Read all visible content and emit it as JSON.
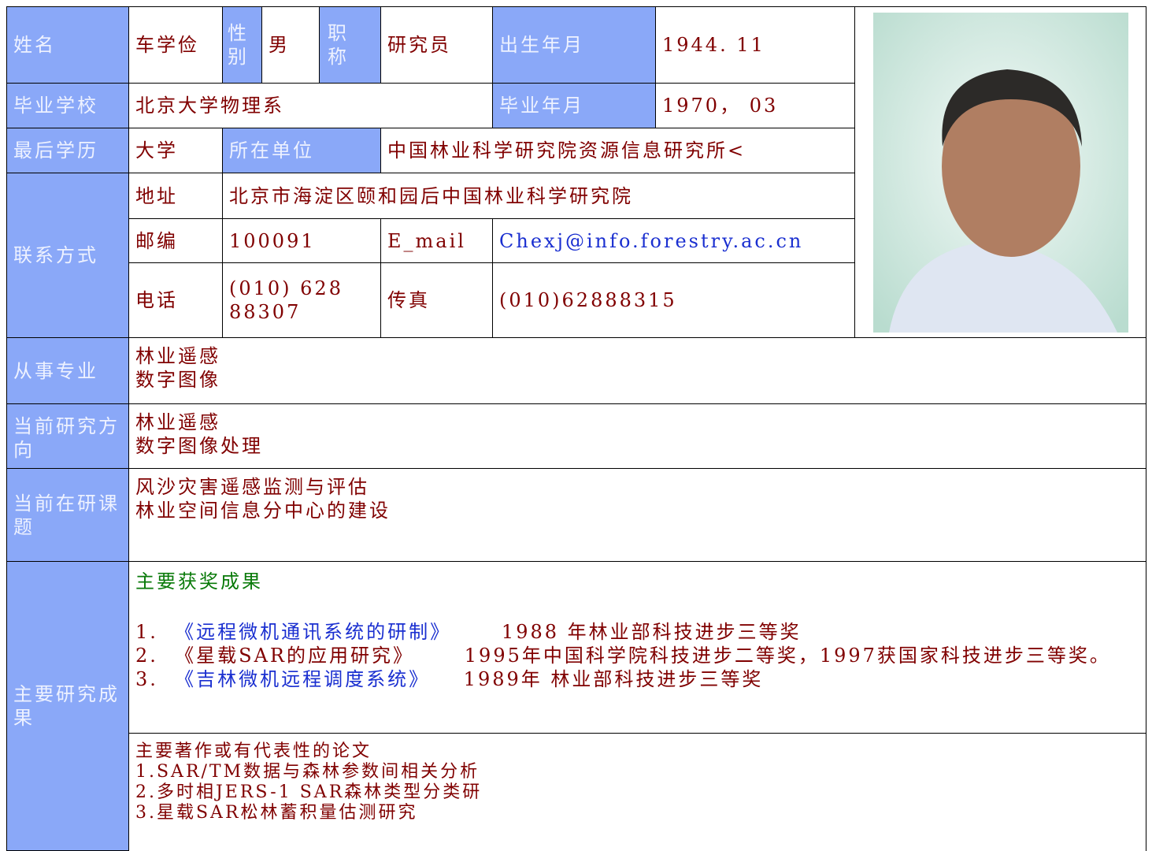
{
  "profile": {
    "name_label": "姓名",
    "name": "车学俭",
    "gender_label": "性别",
    "gender": "男",
    "title_label": "职称",
    "title": "研究员",
    "birth_label": "出生年月",
    "birth": "1944. 11",
    "school_label": "毕业学校",
    "school": "北京大学物理系",
    "grad_label": "毕业年月",
    "grad": "1970， 03",
    "edu_label": "最后学历",
    "edu": "大学",
    "unit_label": "所在单位",
    "unit": "中国林业科学研究院资源信息研究所<",
    "contact_label": "联系方式",
    "address_label": "地址",
    "address": "北京市海淀区颐和园后中国林业科学研究院",
    "zip_label": "邮编",
    "zip": "100091",
    "email_label": "E_mail",
    "email": "Chexj@info.forestry.ac.cn",
    "phone_label": "电话",
    "phone": "(010) 62888307",
    "fax_label": "传真",
    "fax": "(010)62888315"
  },
  "specialty": {
    "label": "从事专业",
    "lines": [
      "林业遥感",
      "数字图像"
    ]
  },
  "direction": {
    "label": "当前研究方向",
    "lines": [
      "林业遥感",
      "数字图像处理"
    ]
  },
  "projects": {
    "label": "当前在研课题",
    "lines": [
      "风沙灾害遥感监测与评估",
      "林业空间信息分中心的建设"
    ]
  },
  "results": {
    "label": "主要研究成果",
    "awards": {
      "heading": "主要获奖成果",
      "items": [
        {
          "num": "1.  ",
          "title": "《远程微机通讯系统的研制》",
          "detail": "      1988 年林业部科技进步三等奖"
        },
        {
          "num": "2.  ",
          "title": "《星载SAR的应用研究》",
          "detail": "      1995年中国科学院科技进步二等奖，1997获国家科技进步三等奖。"
        },
        {
          "num": "3.  ",
          "title": "《吉林微机远程调度系统》",
          "detail": "    1989年 林业部科技进步三等奖"
        }
      ]
    },
    "papers": {
      "heading": "主要著作或有代表性的论文",
      "lines": [
        "1.SAR/TM数据与森林参数间相关分析",
        "2.多时相JERS-1 SAR森林类型分类研",
        "3.星载SAR松林蓄积量估测研究"
      ]
    }
  }
}
